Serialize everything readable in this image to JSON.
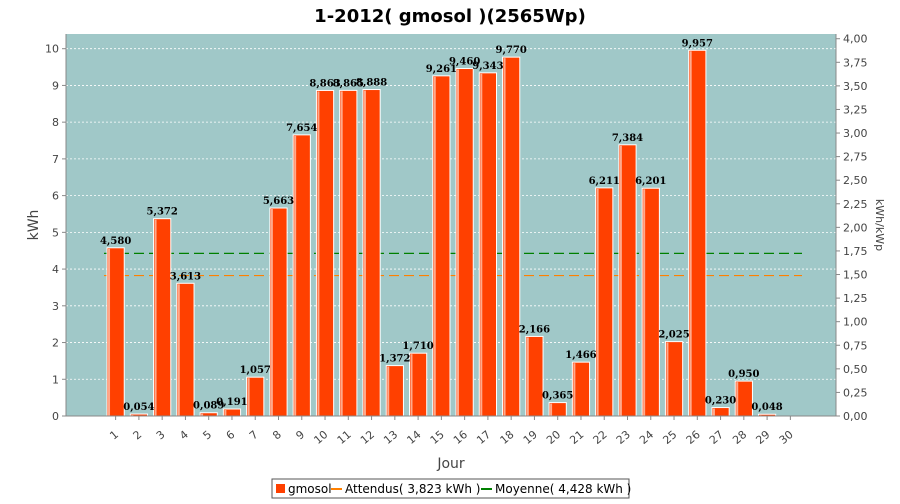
{
  "chart_data": {
    "type": "bar",
    "title": "1-2012( gmosol )(2565Wp)",
    "xlabel": "Jour",
    "ylabel": "kWh",
    "ylabel_right": "kWh/kWp",
    "categories": [
      "1",
      "2",
      "3",
      "4",
      "5",
      "6",
      "7",
      "8",
      "9",
      "10",
      "11",
      "12",
      "13",
      "14",
      "15",
      "16",
      "17",
      "18",
      "19",
      "20",
      "21",
      "22",
      "23",
      "24",
      "25",
      "26",
      "27",
      "28",
      "29",
      "30"
    ],
    "series": [
      {
        "name": "gmosol",
        "color": "#ff4000",
        "values": [
          4.58,
          0.054,
          5.372,
          3.613,
          0.089,
          0.191,
          1.057,
          5.663,
          7.654,
          8.863,
          8.865,
          8.888,
          1.372,
          1.71,
          9.261,
          9.46,
          9.343,
          9.77,
          2.166,
          0.365,
          1.466,
          6.211,
          7.384,
          6.201,
          2.025,
          9.957,
          0.23,
          0.95,
          0.048,
          null
        ],
        "labels": [
          "4,580",
          "0,054",
          "5,372",
          "3,613",
          "0,089",
          "0,191",
          "1,057",
          "5,663",
          "7,654",
          "8,863",
          "8,865",
          "8,888",
          "1,372",
          "1,710",
          "9,261",
          "9,460",
          "9,343",
          "9,770",
          "2,166",
          "0,365",
          "1,466",
          "6,211",
          "7,384",
          "6,201",
          "2,025",
          "9,957",
          "0,230",
          "0,950",
          "0,048",
          ""
        ]
      }
    ],
    "reference_lines": [
      {
        "name": "Attendus( 3,823 kWh )",
        "value": 3.823,
        "color": "#ff8000"
      },
      {
        "name": "Moyenne( 4,428 kWh )",
        "value": 4.428,
        "color": "#008000"
      }
    ],
    "ylim": [
      0,
      10.4
    ],
    "yticks": [
      0,
      1,
      2,
      3,
      4,
      5,
      6,
      7,
      8,
      9,
      10
    ],
    "ylim_right": [
      0,
      4.05
    ],
    "yticks_right": [
      "0,00",
      "0,25",
      "0,50",
      "0,75",
      "1,00",
      "1,25",
      "1,50",
      "1,75",
      "2,00",
      "2,25",
      "2,50",
      "2,75",
      "3,00",
      "3,25",
      "3,50",
      "3,75",
      "4,00"
    ],
    "yticks_right_values": [
      0,
      0.25,
      0.5,
      0.75,
      1.0,
      1.25,
      1.5,
      1.75,
      2.0,
      2.25,
      2.5,
      2.75,
      3.0,
      3.25,
      3.5,
      3.75,
      4.0
    ],
    "plot_background": "#a0c8c8",
    "grid": true,
    "legend_position": "bottom"
  }
}
